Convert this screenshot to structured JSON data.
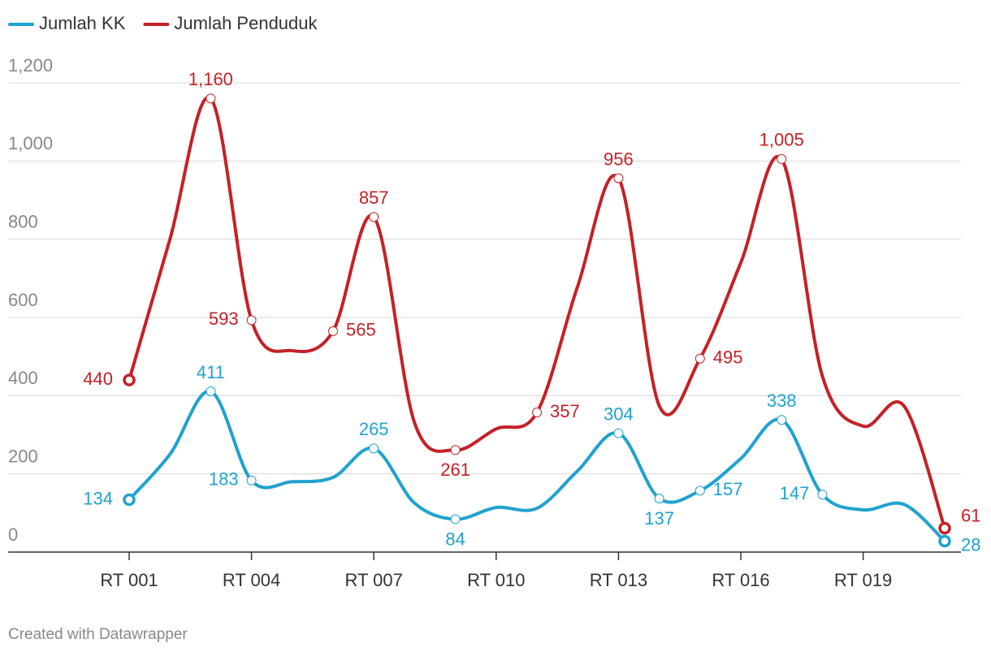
{
  "chart_data": {
    "type": "line",
    "footer": "Created with Datawrapper",
    "categories": [
      "RT 001",
      null,
      null,
      "RT 004",
      null,
      null,
      "RT 007",
      null,
      null,
      "RT 010",
      null,
      null,
      "RT 013",
      null,
      null,
      "RT 016",
      null,
      null,
      "RT 019",
      null,
      null
    ],
    "series": [
      {
        "name": "Jumlah KK",
        "color": "#1fa2cf",
        "values": [
          134,
          250,
          411,
          183,
          180,
          191,
          265,
          125,
          84,
          114,
          112,
          208,
          304,
          137,
          157,
          239,
          338,
          147,
          108,
          122,
          28
        ],
        "value_labels": [
          "134",
          null,
          "411",
          "183",
          null,
          null,
          "265",
          null,
          "84",
          null,
          null,
          null,
          "304",
          "137",
          "157",
          null,
          "338",
          "147",
          null,
          null,
          "28"
        ]
      },
      {
        "name": "Jumlah Penduduk",
        "color": "#c42127",
        "values": [
          440,
          800,
          1160,
          593,
          515,
          565,
          857,
          330,
          261,
          315,
          357,
          680,
          956,
          374,
          495,
          740,
          1005,
          450,
          322,
          374,
          61
        ],
        "value_labels": [
          "440",
          null,
          "1,160",
          "593",
          null,
          "565",
          "857",
          null,
          "261",
          null,
          "357",
          null,
          "956",
          null,
          "495",
          null,
          "1,005",
          null,
          null,
          null,
          "61"
        ]
      }
    ],
    "ylim": [
      0,
      1200
    ],
    "yticks": [
      0,
      200,
      400,
      600,
      800,
      {
        "value": 1000,
        "label": "1,000"
      },
      {
        "value": 1200,
        "label": "1,200"
      }
    ],
    "grid": true,
    "legend": "top-left"
  }
}
